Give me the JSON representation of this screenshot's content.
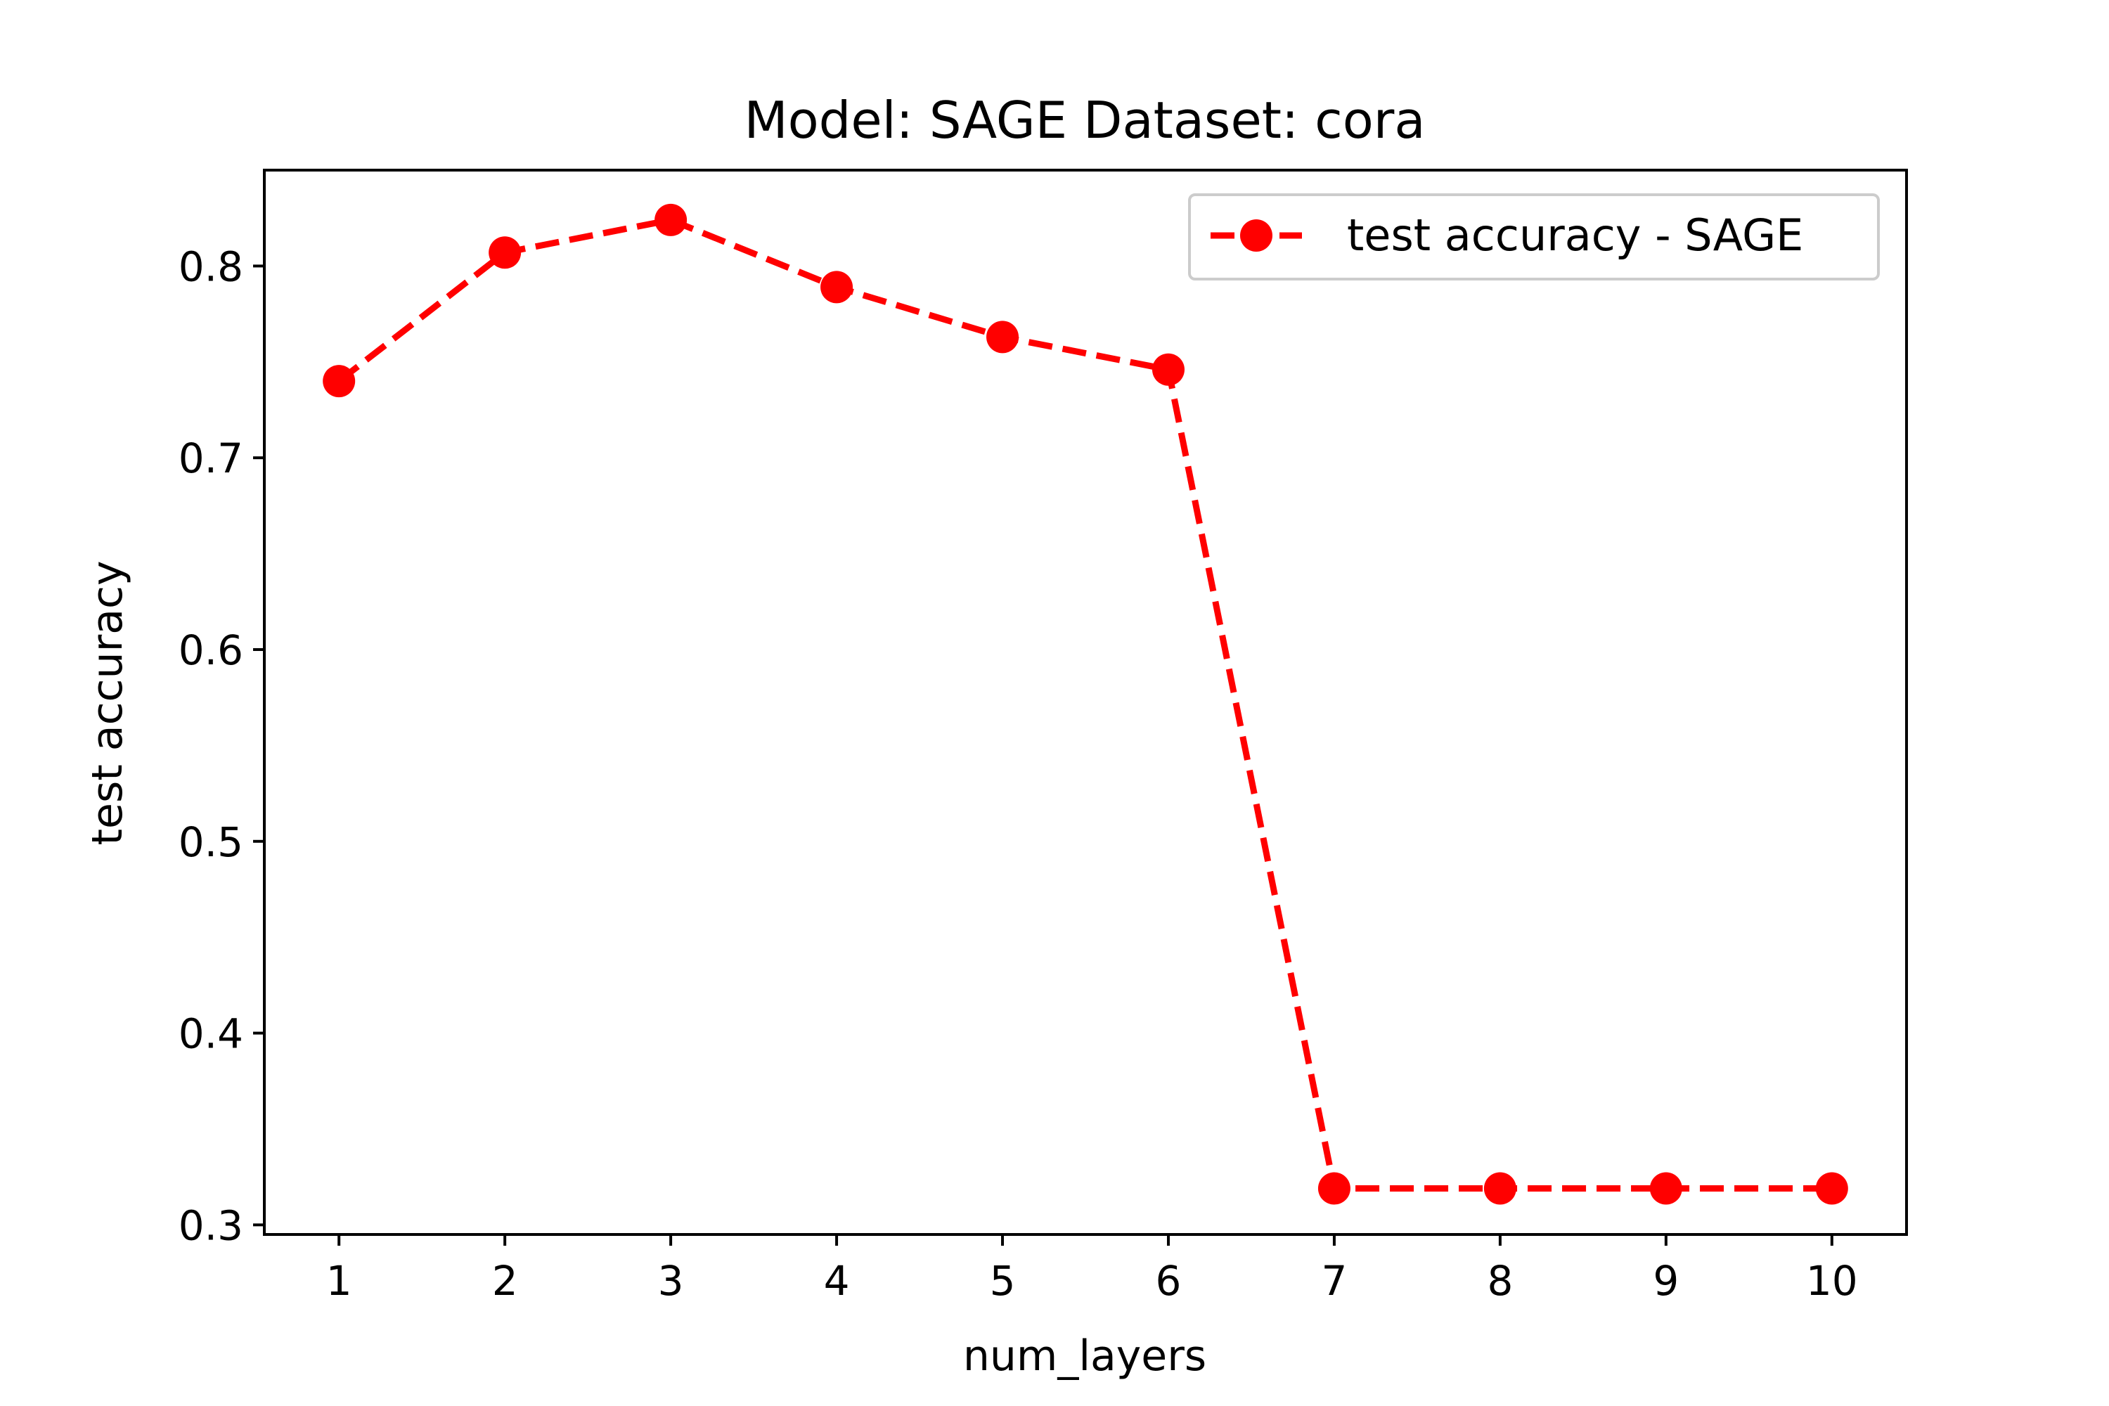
{
  "chart_data": {
    "type": "line",
    "title": "Model: SAGE Dataset: cora",
    "xlabel": "num_layers",
    "ylabel": "test accuracy",
    "x": [
      1,
      2,
      3,
      4,
      5,
      6,
      7,
      8,
      9,
      10
    ],
    "xticks": [
      "1",
      "2",
      "3",
      "4",
      "5",
      "6",
      "7",
      "8",
      "9",
      "10"
    ],
    "yticks": [
      "0.3",
      "0.4",
      "0.5",
      "0.6",
      "0.7",
      "0.8"
    ],
    "xlim": [
      0.55,
      10.45
    ],
    "ylim": [
      0.295,
      0.85
    ],
    "grid": false,
    "legend_position": "top-right",
    "series": [
      {
        "name": "test accuracy - SAGE",
        "values": [
          0.74,
          0.807,
          0.824,
          0.789,
          0.763,
          0.746,
          0.319,
          0.319,
          0.319,
          0.319
        ],
        "color": "#ff0000",
        "line_style": "dashed",
        "marker": "circle"
      }
    ]
  }
}
